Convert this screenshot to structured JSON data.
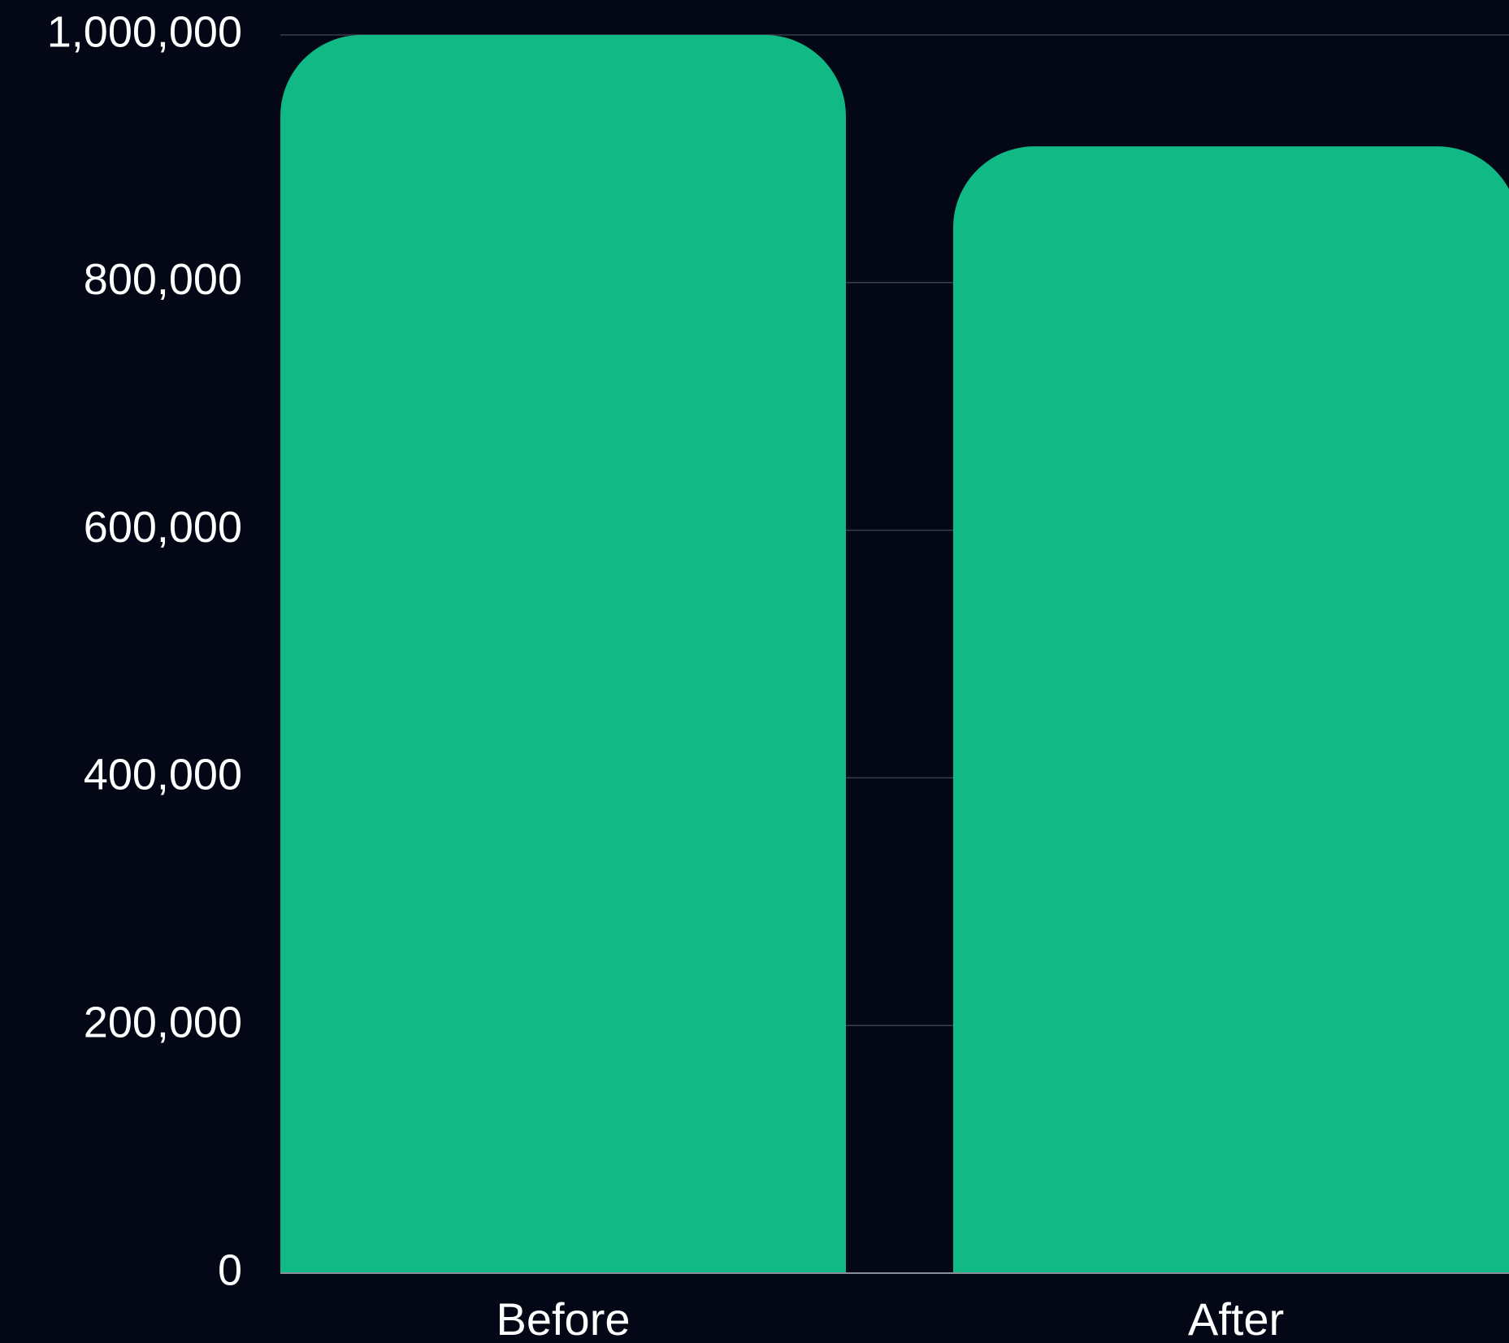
{
  "colors": {
    "background": "#040816",
    "bar": "#11b985",
    "grid": "#3a3f4d",
    "text": "#ffffff"
  },
  "chart_data": {
    "type": "bar",
    "title": "",
    "xlabel": "",
    "ylabel": "",
    "categories": [
      "Before",
      "After"
    ],
    "values": [
      1000000,
      910000
    ],
    "ylim": [
      0,
      1000000
    ],
    "yticks": [
      0,
      200000,
      400000,
      600000,
      800000,
      1000000
    ],
    "ytick_labels": [
      "0",
      "200,000",
      "400,000",
      "600,000",
      "800,000",
      "1,000,000"
    ],
    "grid": true,
    "legend": "none"
  }
}
